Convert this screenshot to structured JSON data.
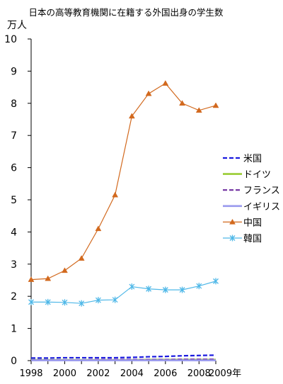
{
  "chart_data": {
    "type": "line",
    "title": "日本の高等教育機関に在籍する外国出身の学生数",
    "ylabel": "万人",
    "xlabel": "",
    "x": [
      1998,
      1999,
      2000,
      2001,
      2002,
      2003,
      2004,
      2005,
      2006,
      2007,
      2008,
      2009
    ],
    "x_tick_labels": [
      "1998",
      "2000",
      "2002",
      "2004",
      "2006",
      "2008",
      "2009年"
    ],
    "x_tick_values": [
      1998,
      2000,
      2002,
      2004,
      2006,
      2008,
      2009
    ],
    "ylim": [
      0,
      10
    ],
    "y_ticks": [
      0,
      1,
      2,
      3,
      4,
      5,
      6,
      7,
      8,
      9,
      10
    ],
    "grid": false,
    "legend": "right",
    "series": [
      {
        "name": "米国",
        "color": "#1a1adf",
        "style": "dashed",
        "marker": "none",
        "values": [
          0.08,
          0.08,
          0.09,
          0.09,
          0.09,
          0.09,
          0.1,
          0.12,
          0.13,
          0.15,
          0.16,
          0.17
        ]
      },
      {
        "name": "ドイツ",
        "color": "#99cc33",
        "style": "solid",
        "marker": "none",
        "values": [
          0.02,
          0.02,
          0.02,
          0.02,
          0.02,
          0.02,
          0.02,
          0.03,
          0.03,
          0.03,
          0.03,
          0.03
        ]
      },
      {
        "name": "フランス",
        "color": "#7030a0",
        "style": "dashed",
        "marker": "none",
        "values": [
          0.02,
          0.02,
          0.02,
          0.02,
          0.03,
          0.03,
          0.03,
          0.03,
          0.03,
          0.04,
          0.04,
          0.04
        ]
      },
      {
        "name": "イギリス",
        "color": "#9999ee",
        "style": "solid",
        "marker": "none",
        "values": [
          0.01,
          0.01,
          0.01,
          0.01,
          0.01,
          0.01,
          0.01,
          0.01,
          0.01,
          0.01,
          0.01,
          0.01
        ]
      },
      {
        "name": "中国",
        "color": "#d2691e",
        "style": "solid",
        "marker": "triangle",
        "values": [
          2.52,
          2.55,
          2.8,
          3.18,
          4.1,
          5.15,
          7.6,
          8.3,
          8.62,
          8.0,
          7.78,
          7.93
        ]
      },
      {
        "name": "韓国",
        "color": "#4fb8e8",
        "style": "solid",
        "marker": "star",
        "values": [
          1.82,
          1.82,
          1.81,
          1.78,
          1.88,
          1.89,
          2.3,
          2.23,
          2.2,
          2.2,
          2.32,
          2.47
        ]
      }
    ]
  }
}
